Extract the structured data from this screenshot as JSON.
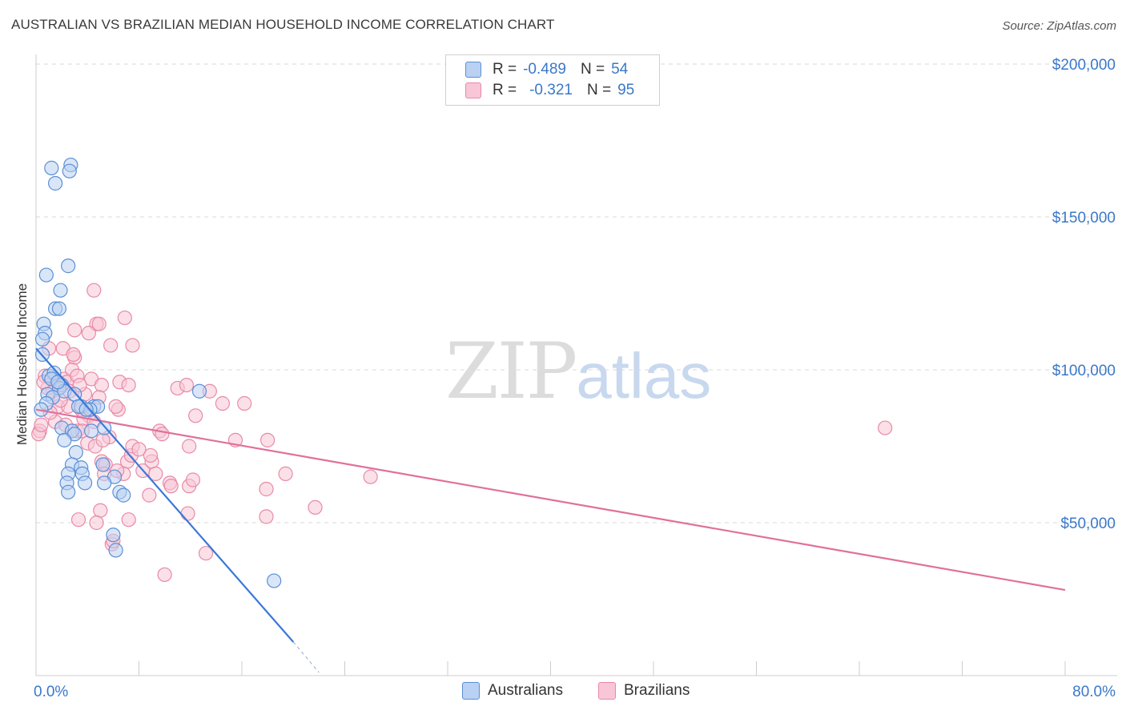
{
  "header": {
    "title": "AUSTRALIAN VS BRAZILIAN MEDIAN HOUSEHOLD INCOME CORRELATION CHART",
    "source": "Source: ZipAtlas.com"
  },
  "watermark": {
    "zip": "ZIP",
    "atlas": "atlas"
  },
  "legend": {
    "rows": [
      {
        "r_label": "R =",
        "r_value": "-0.489",
        "n_label": "N =",
        "n_value": "54"
      },
      {
        "r_label": "R =",
        "r_value": "-0.321",
        "n_label": "N =",
        "n_value": "95"
      }
    ]
  },
  "bottom_legend": {
    "aus": "Australians",
    "bra": "Brazilians"
  },
  "colors": {
    "aus_fill": "#b9d1f2",
    "aus_stroke": "#5b8fd6",
    "aus_line": "#3a78d8",
    "bra_fill": "#f8c6d6",
    "bra_stroke": "#e88aa8",
    "bra_line": "#e0709a",
    "tick_text": "#3a78c9",
    "grid": "#d8d8d8"
  },
  "chart_data": {
    "type": "scatter",
    "title": "AUSTRALIAN VS BRAZILIAN MEDIAN HOUSEHOLD INCOME CORRELATION CHART",
    "xlabel": "",
    "ylabel": "Median Household Income",
    "xlim": [
      0,
      80
    ],
    "ylim": [
      0,
      200000
    ],
    "x_tick_labels": [
      "0.0%",
      "80.0%"
    ],
    "y_ticks": [
      50000,
      100000,
      150000,
      200000
    ],
    "y_tick_labels": [
      "$50,000",
      "$100,000",
      "$150,000",
      "$200,000"
    ],
    "series": [
      {
        "name": "Australians",
        "r": -0.489,
        "n": 54,
        "trend": {
          "x0": 0,
          "y0": 107000,
          "x1": 20,
          "y1": 11000,
          "dashed_to_x": 22,
          "dashed_to_y": 1000
        },
        "points": [
          [
            1.2,
            166000
          ],
          [
            1.5,
            161000
          ],
          [
            2.7,
            167000
          ],
          [
            2.6,
            165000
          ],
          [
            2.5,
            134000
          ],
          [
            0.8,
            131000
          ],
          [
            1.9,
            126000
          ],
          [
            1.5,
            120000
          ],
          [
            1.8,
            120000
          ],
          [
            0.6,
            115000
          ],
          [
            0.7,
            112000
          ],
          [
            0.5,
            110000
          ],
          [
            0.5,
            105000
          ],
          [
            1.0,
            98000
          ],
          [
            1.4,
            99000
          ],
          [
            1.2,
            97000
          ],
          [
            2.0,
            95000
          ],
          [
            1.8,
            94000
          ],
          [
            2.2,
            93000
          ],
          [
            0.9,
            92000
          ],
          [
            1.3,
            91000
          ],
          [
            0.8,
            89000
          ],
          [
            3.0,
            92000
          ],
          [
            3.5,
            88000
          ],
          [
            4.5,
            88000
          ],
          [
            4.8,
            88000
          ],
          [
            4.2,
            87000
          ],
          [
            3.3,
            88000
          ],
          [
            2.0,
            81000
          ],
          [
            2.8,
            80000
          ],
          [
            3.0,
            79000
          ],
          [
            4.3,
            80000
          ],
          [
            5.3,
            81000
          ],
          [
            2.2,
            77000
          ],
          [
            3.1,
            73000
          ],
          [
            2.8,
            69000
          ],
          [
            3.5,
            68000
          ],
          [
            3.6,
            66000
          ],
          [
            2.5,
            66000
          ],
          [
            5.2,
            69000
          ],
          [
            6.1,
            65000
          ],
          [
            2.4,
            63000
          ],
          [
            3.8,
            63000
          ],
          [
            5.3,
            63000
          ],
          [
            2.5,
            60000
          ],
          [
            6.5,
            60000
          ],
          [
            6.8,
            59000
          ],
          [
            6.0,
            46000
          ],
          [
            6.2,
            41000
          ],
          [
            12.7,
            93000
          ],
          [
            18.5,
            31000
          ],
          [
            0.4,
            87000
          ],
          [
            1.7,
            96000
          ],
          [
            3.9,
            87000
          ]
        ]
      },
      {
        "name": "Brazilians",
        "r": -0.321,
        "n": 95,
        "trend": {
          "x0": 0,
          "y0": 87000,
          "x1": 80,
          "y1": 28000
        },
        "points": [
          [
            4.5,
            126000
          ],
          [
            3.0,
            113000
          ],
          [
            4.7,
            115000
          ],
          [
            4.9,
            115000
          ],
          [
            6.9,
            117000
          ],
          [
            4.1,
            112000
          ],
          [
            1.0,
            107000
          ],
          [
            2.1,
            107000
          ],
          [
            3.0,
            104000
          ],
          [
            2.9,
            105000
          ],
          [
            5.8,
            108000
          ],
          [
            7.5,
            108000
          ],
          [
            0.7,
            98000
          ],
          [
            1.4,
            97000
          ],
          [
            1.8,
            95000
          ],
          [
            2.2,
            97000
          ],
          [
            2.4,
            96000
          ],
          [
            1.3,
            93000
          ],
          [
            0.9,
            94000
          ],
          [
            0.6,
            96000
          ],
          [
            2.8,
            100000
          ],
          [
            3.2,
            98000
          ],
          [
            3.8,
            92000
          ],
          [
            4.3,
            97000
          ],
          [
            5.1,
            95000
          ],
          [
            6.5,
            96000
          ],
          [
            7.2,
            95000
          ],
          [
            11.0,
            94000
          ],
          [
            11.7,
            95000
          ],
          [
            13.5,
            93000
          ],
          [
            14.5,
            89000
          ],
          [
            1.7,
            88000
          ],
          [
            2.5,
            88000
          ],
          [
            3.5,
            87000
          ],
          [
            4.1,
            85000
          ],
          [
            6.4,
            87000
          ],
          [
            1.5,
            83000
          ],
          [
            2.3,
            82000
          ],
          [
            3.7,
            84000
          ],
          [
            4.5,
            83000
          ],
          [
            0.3,
            80000
          ],
          [
            3.2,
            80000
          ],
          [
            3.6,
            80000
          ],
          [
            5.7,
            78000
          ],
          [
            4.0,
            76000
          ],
          [
            4.6,
            75000
          ],
          [
            5.2,
            77000
          ],
          [
            9.6,
            80000
          ],
          [
            9.8,
            79000
          ],
          [
            11.9,
            75000
          ],
          [
            15.5,
            77000
          ],
          [
            18.0,
            77000
          ],
          [
            5.1,
            70000
          ],
          [
            5.4,
            69000
          ],
          [
            7.1,
            70000
          ],
          [
            7.4,
            72000
          ],
          [
            7.5,
            75000
          ],
          [
            8.3,
            67000
          ],
          [
            9.0,
            70000
          ],
          [
            8.9,
            72000
          ],
          [
            5.3,
            66000
          ],
          [
            6.8,
            66000
          ],
          [
            6.3,
            67000
          ],
          [
            10.4,
            63000
          ],
          [
            10.5,
            62000
          ],
          [
            11.9,
            62000
          ],
          [
            12.2,
            64000
          ],
          [
            19.4,
            66000
          ],
          [
            26.0,
            65000
          ],
          [
            66.0,
            81000
          ],
          [
            3.3,
            51000
          ],
          [
            5.0,
            54000
          ],
          [
            4.7,
            50000
          ],
          [
            7.2,
            51000
          ],
          [
            8.8,
            59000
          ],
          [
            11.8,
            53000
          ],
          [
            17.9,
            52000
          ],
          [
            17.9,
            61000
          ],
          [
            21.7,
            55000
          ],
          [
            5.9,
            43000
          ],
          [
            6.0,
            44000
          ],
          [
            13.2,
            40000
          ],
          [
            10.0,
            33000
          ],
          [
            0.2,
            79000
          ],
          [
            0.4,
            82000
          ],
          [
            1.1,
            86000
          ],
          [
            1.9,
            90000
          ],
          [
            2.6,
            93000
          ],
          [
            3.4,
            95000
          ],
          [
            4.9,
            91000
          ],
          [
            6.2,
            88000
          ],
          [
            8.0,
            74000
          ],
          [
            9.3,
            66000
          ],
          [
            12.4,
            85000
          ],
          [
            16.2,
            89000
          ]
        ]
      }
    ]
  }
}
